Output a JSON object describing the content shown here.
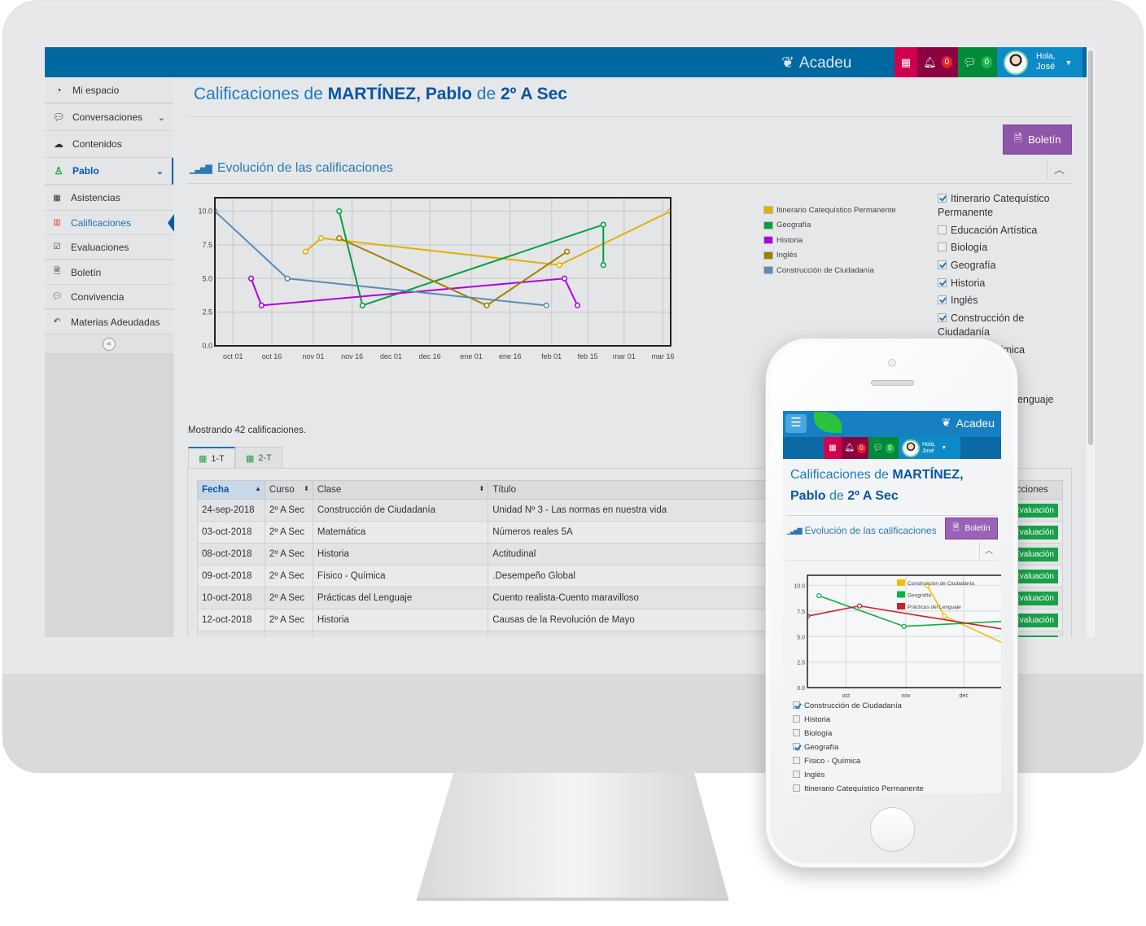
{
  "app": {
    "name": "Acadeu",
    "greeting_line1": "Hola,",
    "greeting_line2": "José",
    "notifications_count": "0",
    "messages_count": "0"
  },
  "colors": {
    "topbar": "#0068a0",
    "calendar_btn": "#d0004f",
    "bell_btn": "#8c0042",
    "chat_btn": "#008a3a",
    "user_btn": "#0d8ac8",
    "boletin_btn": "#8e55a8",
    "accent": "#1f7bbf"
  },
  "sidebar": {
    "items": [
      {
        "label": "Mi espacio",
        "icon": "dashboard-icon"
      },
      {
        "label": "Conversaciones",
        "icon": "comments-icon",
        "chevron": true
      },
      {
        "label": "Contenidos",
        "icon": "cloud-icon"
      },
      {
        "label": "Pablo",
        "icon": "child-icon",
        "chevron": true,
        "active": true
      },
      {
        "label": "Asistencias",
        "icon": "calendar-icon",
        "sub": true
      },
      {
        "label": "Calificaciones",
        "icon": "bar-chart-icon",
        "sub": true,
        "current": true
      },
      {
        "label": "Evaluaciones",
        "icon": "checkbox-icon",
        "sub": true
      },
      {
        "label": "Boletín",
        "icon": "file-icon",
        "sub": true
      },
      {
        "label": "Convivencia",
        "icon": "comments-icon",
        "sub": true
      },
      {
        "label": "Materias Adeudadas",
        "icon": "reply-all-icon",
        "sub": true
      }
    ]
  },
  "page": {
    "title_prefix": "Calificaciones de ",
    "student": "MARTÍNEZ, Pablo",
    "title_mid": " de ",
    "course": "2º A Sec",
    "boletin_label": "Boletín",
    "section_title": "Evolución de las calificaciones",
    "showing": "Mostrando 42 calificaciones.",
    "tabs": [
      {
        "label": "1-T",
        "active": true
      },
      {
        "label": "2-T"
      }
    ]
  },
  "filters": [
    {
      "label": "Itinerario Catequístico Permanente",
      "checked": true
    },
    {
      "label": "Educación Artística",
      "checked": false
    },
    {
      "label": "Biología",
      "checked": false
    },
    {
      "label": "Geografía",
      "checked": true
    },
    {
      "label": "Historia",
      "checked": true
    },
    {
      "label": "Inglés",
      "checked": true
    },
    {
      "label": "Construcción de Ciudadanía",
      "checked": true
    },
    {
      "label": "Físico - Química",
      "checked": false
    },
    {
      "label": "Prácticas del Lenguaje",
      "checked": false
    }
  ],
  "table": {
    "columns": [
      "Fecha",
      "Curso",
      "Clase",
      "Título",
      "Acciones"
    ],
    "action_label": "Evaluación",
    "rows": [
      [
        "24-sep-2018",
        "2º A Sec",
        "Construcción de Ciudadanía",
        "Unidad Nº 3 - Las normas en nuestra vida"
      ],
      [
        "03-oct-2018",
        "2º A Sec",
        "Matemática",
        "Números reales 5A"
      ],
      [
        "08-oct-2018",
        "2º A Sec",
        "Historia",
        "Actitudinal"
      ],
      [
        "09-oct-2018",
        "2º A Sec",
        "Físico - Química",
        ".Desempeño Global"
      ],
      [
        "10-oct-2018",
        "2º A Sec",
        "Prácticas del Lenguaje",
        "Cuento realista-Cuento maravilloso"
      ],
      [
        "12-oct-2018",
        "2º A Sec",
        "Historia",
        "Causas de la Revolución de Mayo"
      ],
      [
        "",
        "",
        "",
        ""
      ]
    ]
  },
  "chart_data": [
    {
      "type": "line",
      "ylim": [
        0,
        11
      ],
      "xlim": [
        "2018-09-24",
        "2019-03-19"
      ],
      "yticks": [
        "0.0",
        "2.5",
        "5.0",
        "7.5",
        "10.0"
      ],
      "ytick_values": [
        0,
        2.5,
        5,
        7.5,
        10
      ],
      "xticks": [
        {
          "label": "oct 01",
          "date": "2018-10-01"
        },
        {
          "label": "oct 16",
          "date": "2018-10-16"
        },
        {
          "label": "nov 01",
          "date": "2018-11-01"
        },
        {
          "label": "nov 16",
          "date": "2018-11-16"
        },
        {
          "label": "dec 01",
          "date": "2018-12-01"
        },
        {
          "label": "dec 16",
          "date": "2018-12-16"
        },
        {
          "label": "ene 01",
          "date": "2019-01-01"
        },
        {
          "label": "ene 16",
          "date": "2019-01-16"
        },
        {
          "label": "feb 01",
          "date": "2019-02-01"
        },
        {
          "label": "feb 15",
          "date": "2019-02-15"
        },
        {
          "label": "mar 01",
          "date": "2019-03-01"
        },
        {
          "label": "mar 16",
          "date": "2019-03-16"
        }
      ],
      "grid": true,
      "legend": "right",
      "series": [
        {
          "name": "Itinerario Catequístico Permanente",
          "color": "#e0b000",
          "points": [
            [
              "2018-10-29",
              7
            ],
            [
              "2018-11-04",
              8
            ],
            [
              "2019-02-04",
              6
            ],
            [
              "2019-03-19",
              10
            ]
          ]
        },
        {
          "name": "Geografía",
          "color": "#00a040",
          "points": [
            [
              "2018-11-11",
              10
            ],
            [
              "2018-11-20",
              3
            ],
            [
              "2019-02-21",
              9
            ],
            [
              "2019-02-21",
              6
            ]
          ]
        },
        {
          "name": "Historia",
          "color": "#b000e0",
          "points": [
            [
              "2018-10-08",
              5
            ],
            [
              "2018-10-12",
              3
            ],
            [
              "2019-02-06",
              5
            ],
            [
              "2019-02-11",
              3
            ]
          ]
        },
        {
          "name": "Inglés",
          "color": "#a08000",
          "points": [
            [
              "2018-11-11",
              8
            ],
            [
              "2019-01-07",
              3
            ],
            [
              "2019-02-07",
              7
            ]
          ]
        },
        {
          "name": "Construcción de Ciudadanía",
          "color": "#5a8cb5",
          "points": [
            [
              "2018-09-24",
              10
            ],
            [
              "2018-10-22",
              5
            ],
            [
              "2019-01-30",
              3
            ]
          ]
        }
      ]
    },
    {
      "type": "line",
      "ylim": [
        0,
        11
      ],
      "xlim": [
        "2018-09-11",
        "2018-12-22"
      ],
      "yticks": [
        "0.0",
        "2.5",
        "5.0",
        "7.5",
        "10.0"
      ],
      "ytick_values": [
        0,
        2.5,
        5,
        7.5,
        10
      ],
      "xticks": [
        {
          "label": "oct",
          "date": "2018-10-01"
        },
        {
          "label": "nov",
          "date": "2018-11-01"
        },
        {
          "label": "dec",
          "date": "2018-12-01"
        }
      ],
      "grid": true,
      "legend": "top-right",
      "series": [
        {
          "name": "Construcción de Ciudadanía",
          "color": "#f0c000",
          "points": [
            [
              "2018-11-12",
              10
            ],
            [
              "2018-11-21",
              7
            ],
            [
              "2018-12-22",
              4.3
            ]
          ]
        },
        {
          "name": "Geografía",
          "color": "#10b040",
          "points": [
            [
              "2018-09-17",
              9
            ],
            [
              "2018-10-31",
              6
            ],
            [
              "2018-12-22",
              6.5
            ]
          ]
        },
        {
          "name": "Prácticas del Lenguaje",
          "color": "#c8202e",
          "points": [
            [
              "2018-09-11",
              7
            ],
            [
              "2018-10-08",
              8
            ],
            [
              "2018-12-22",
              5.7
            ]
          ]
        }
      ]
    }
  ],
  "phone": {
    "filters": [
      {
        "label": "Construcción de Ciudadanía",
        "checked": true
      },
      {
        "label": "Historia",
        "checked": false
      },
      {
        "label": "Biología",
        "checked": false
      },
      {
        "label": "Geografía",
        "checked": true
      },
      {
        "label": "Físico - Química",
        "checked": false
      },
      {
        "label": "Inglés",
        "checked": false
      },
      {
        "label": "Itinerario Catequístico Permanente",
        "checked": false
      }
    ]
  }
}
